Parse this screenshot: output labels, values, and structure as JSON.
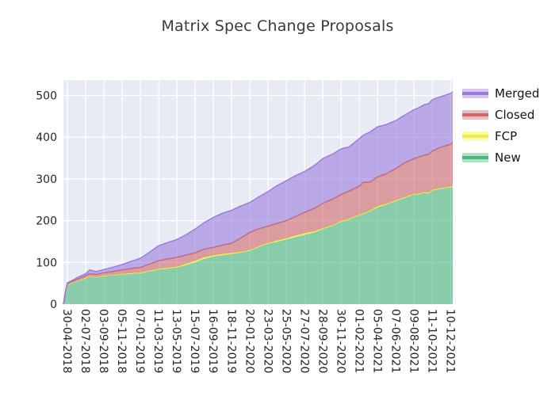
{
  "title": "Matrix Spec Change Proposals",
  "legend": {
    "items": [
      {
        "label": "Merged",
        "color": "#9370db"
      },
      {
        "label": "Closed",
        "color": "#cd5c5c"
      },
      {
        "label": "FCP",
        "color": "#f0ef3a"
      },
      {
        "label": "New",
        "color": "#3cb371"
      }
    ]
  },
  "chart_data": {
    "type": "area",
    "stacked": true,
    "title": "Matrix Spec Change Proposals",
    "xlabel": "",
    "ylabel": "",
    "x_unit": "weeks_since_start",
    "x_max": 192,
    "ylim": [
      0,
      537
    ],
    "y_ticks": [
      0,
      100,
      200,
      300,
      400,
      500
    ],
    "grid": true,
    "plot_background": "#e7ebf4",
    "gridline_color": "#ffffff",
    "legend_position": "upper right outside",
    "x_tick_weeks": [
      2,
      11,
      20,
      29,
      38,
      47,
      56,
      65,
      74,
      83,
      92,
      101,
      110,
      119,
      128,
      137,
      146,
      155,
      164,
      173,
      182,
      191
    ],
    "x_tick_labels": [
      "30-04-2018",
      "02-07-2018",
      "03-09-2018",
      "05-11-2018",
      "07-01-2019",
      "11-03-2019",
      "13-05-2019",
      "15-07-2019",
      "16-09-2019",
      "18-11-2019",
      "20-01-2020",
      "23-03-2020",
      "25-05-2020",
      "27-07-2020",
      "28-09-2020",
      "30-11-2020",
      "01-02-2021",
      "05-04-2021",
      "07-06-2021",
      "09-08-2021",
      "11-10-2021",
      "10-12-2021"
    ],
    "x_weeks": [
      0,
      1,
      2,
      4,
      7,
      11,
      13,
      16,
      20,
      24,
      29,
      33,
      38,
      42,
      47,
      51,
      56,
      60,
      65,
      69,
      74,
      78,
      83,
      87,
      92,
      96,
      101,
      105,
      110,
      114,
      119,
      124,
      128,
      133,
      137,
      141,
      146,
      148,
      151,
      155,
      159,
      164,
      168,
      173,
      175,
      178,
      180,
      182,
      186,
      191,
      192
    ],
    "series": [
      {
        "name": "New",
        "color": "#3cb371",
        "fill_alpha": 0.55,
        "values": [
          0,
          28,
          46,
          50,
          55,
          62,
          66,
          64,
          67,
          69,
          71,
          72,
          74,
          78,
          83,
          85,
          88,
          93,
          100,
          108,
          114,
          117,
          120,
          123,
          128,
          136,
          145,
          149,
          155,
          160,
          166,
          172,
          180,
          188,
          197,
          203,
          213,
          216,
          222,
          232,
          238,
          247,
          254,
          263,
          262,
          267,
          265,
          272,
          276,
          280,
          282
        ]
      },
      {
        "name": "FCP",
        "color": "#f0ef3a",
        "fill_alpha": 0.6,
        "values": [
          0,
          0,
          1,
          1,
          1,
          1,
          1,
          1,
          1,
          1,
          1,
          2,
          2,
          2,
          2,
          2,
          2,
          3,
          4,
          4,
          3,
          3,
          3,
          2,
          2,
          2,
          2,
          3,
          3,
          4,
          4,
          3,
          2,
          2,
          2,
          2,
          2,
          2,
          2,
          3,
          2,
          2,
          2,
          2,
          2,
          2,
          2,
          2,
          2,
          2,
          2
        ]
      },
      {
        "name": "Closed",
        "color": "#cd5c5c",
        "fill_alpha": 0.55,
        "values": [
          0,
          1,
          2,
          3,
          4,
          5,
          6,
          6,
          7,
          8,
          10,
          11,
          12,
          15,
          19,
          21,
          22,
          21,
          19,
          19,
          19,
          21,
          23,
          32,
          42,
          42,
          40,
          41,
          42,
          45,
          50,
          55,
          60,
          62,
          64,
          66,
          68,
          74,
          68,
          70,
          72,
          76,
          82,
          84,
          88,
          88,
          92,
          93,
          98,
          101,
          104
        ]
      },
      {
        "name": "Merged",
        "color": "#9370db",
        "fill_alpha": 0.55,
        "values": [
          0,
          1,
          2,
          2,
          4,
          5,
          9,
          7,
          8,
          10,
          13,
          17,
          22,
          28,
          36,
          39,
          43,
          48,
          57,
          63,
          72,
          76,
          79,
          77,
          72,
          76,
          83,
          90,
          96,
          98,
          98,
          103,
          107,
          108,
          109,
          106,
          114,
          113,
          120,
          120,
          118,
          115,
          114,
          117,
          118,
          121,
          121,
          123,
          121,
          122,
          121
        ]
      }
    ]
  }
}
